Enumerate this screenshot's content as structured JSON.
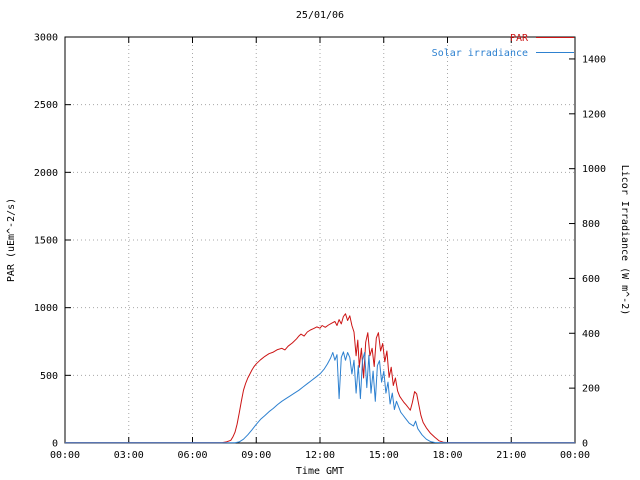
{
  "chart_data": {
    "type": "line",
    "title": "25/01/06",
    "xlabel": "Time GMT",
    "grid": true,
    "legend_position": "top-right-inside",
    "x_range": [
      0,
      24
    ],
    "x_ticks": [
      {
        "v": 0,
        "label": "00:00"
      },
      {
        "v": 3,
        "label": "03:00"
      },
      {
        "v": 6,
        "label": "06:00"
      },
      {
        "v": 9,
        "label": "09:00"
      },
      {
        "v": 12,
        "label": "12:00"
      },
      {
        "v": 15,
        "label": "15:00"
      },
      {
        "v": 18,
        "label": "18:00"
      },
      {
        "v": 21,
        "label": "21:00"
      },
      {
        "v": 24,
        "label": "00:00"
      }
    ],
    "y_left": {
      "label": "PAR (uEm^-2/s)",
      "range": [
        0,
        3000
      ],
      "ticks": [
        {
          "v": 0,
          "label": "0"
        },
        {
          "v": 500,
          "label": "500"
        },
        {
          "v": 1000,
          "label": "1000"
        },
        {
          "v": 1500,
          "label": "1500"
        },
        {
          "v": 2000,
          "label": "2000"
        },
        {
          "v": 2500,
          "label": "2500"
        },
        {
          "v": 3000,
          "label": "3000"
        }
      ]
    },
    "y_right": {
      "label": "Licor Irradiance (W m^-2)",
      "range": [
        0,
        1480
      ],
      "ticks": [
        {
          "v": 0,
          "label": "0"
        },
        {
          "v": 200,
          "label": "200"
        },
        {
          "v": 400,
          "label": "400"
        },
        {
          "v": 600,
          "label": "600"
        },
        {
          "v": 800,
          "label": "800"
        },
        {
          "v": 1000,
          "label": "1000"
        },
        {
          "v": 1200,
          "label": "1200"
        },
        {
          "v": 1400,
          "label": "1400"
        }
      ]
    },
    "colors": {
      "grid": "#a8a8a8",
      "axis": "#000000",
      "par": "#cc1414",
      "solar": "#2e81d0"
    },
    "series": [
      {
        "name": "PAR",
        "axis": "left",
        "color": "#cc1414",
        "points": [
          [
            0,
            3
          ],
          [
            3,
            3
          ],
          [
            6,
            3
          ],
          [
            7.4,
            3
          ],
          [
            7.6,
            8
          ],
          [
            7.8,
            20
          ],
          [
            7.9,
            45
          ],
          [
            8.0,
            80
          ],
          [
            8.1,
            140
          ],
          [
            8.2,
            220
          ],
          [
            8.3,
            310
          ],
          [
            8.4,
            390
          ],
          [
            8.5,
            440
          ],
          [
            8.6,
            480
          ],
          [
            8.7,
            510
          ],
          [
            8.8,
            540
          ],
          [
            8.9,
            565
          ],
          [
            9.0,
            585
          ],
          [
            9.2,
            615
          ],
          [
            9.4,
            640
          ],
          [
            9.6,
            660
          ],
          [
            9.8,
            672
          ],
          [
            10.0,
            690
          ],
          [
            10.2,
            700
          ],
          [
            10.35,
            688
          ],
          [
            10.5,
            715
          ],
          [
            10.7,
            740
          ],
          [
            10.9,
            770
          ],
          [
            11.0,
            790
          ],
          [
            11.1,
            805
          ],
          [
            11.25,
            790
          ],
          [
            11.4,
            820
          ],
          [
            11.55,
            835
          ],
          [
            11.7,
            845
          ],
          [
            11.85,
            858
          ],
          [
            12.0,
            848
          ],
          [
            12.1,
            868
          ],
          [
            12.25,
            855
          ],
          [
            12.4,
            872
          ],
          [
            12.55,
            885
          ],
          [
            12.7,
            898
          ],
          [
            12.8,
            868
          ],
          [
            12.9,
            912
          ],
          [
            13.0,
            880
          ],
          [
            13.1,
            935
          ],
          [
            13.2,
            955
          ],
          [
            13.3,
            905
          ],
          [
            13.4,
            940
          ],
          [
            13.5,
            868
          ],
          [
            13.6,
            820
          ],
          [
            13.7,
            645
          ],
          [
            13.78,
            760
          ],
          [
            13.85,
            560
          ],
          [
            13.95,
            700
          ],
          [
            14.05,
            480
          ],
          [
            14.15,
            745
          ],
          [
            14.25,
            815
          ],
          [
            14.35,
            645
          ],
          [
            14.45,
            700
          ],
          [
            14.55,
            565
          ],
          [
            14.65,
            775
          ],
          [
            14.75,
            815
          ],
          [
            14.85,
            680
          ],
          [
            14.95,
            735
          ],
          [
            15.05,
            600
          ],
          [
            15.15,
            680
          ],
          [
            15.25,
            485
          ],
          [
            15.35,
            560
          ],
          [
            15.45,
            425
          ],
          [
            15.55,
            480
          ],
          [
            15.65,
            385
          ],
          [
            15.75,
            345
          ],
          [
            15.85,
            322
          ],
          [
            15.95,
            300
          ],
          [
            16.05,
            282
          ],
          [
            16.15,
            262
          ],
          [
            16.25,
            242
          ],
          [
            16.35,
            300
          ],
          [
            16.45,
            380
          ],
          [
            16.55,
            362
          ],
          [
            16.65,
            282
          ],
          [
            16.75,
            205
          ],
          [
            16.85,
            152
          ],
          [
            17.0,
            112
          ],
          [
            17.2,
            72
          ],
          [
            17.4,
            42
          ],
          [
            17.6,
            16
          ],
          [
            17.8,
            6
          ],
          [
            18.0,
            3
          ],
          [
            21,
            3
          ],
          [
            24,
            3
          ]
        ]
      },
      {
        "name": "Solar irradiance",
        "axis": "right",
        "color": "#2e81d0",
        "points": [
          [
            0,
            1
          ],
          [
            6,
            1
          ],
          [
            8.0,
            1
          ],
          [
            8.2,
            4
          ],
          [
            8.4,
            14
          ],
          [
            8.6,
            30
          ],
          [
            8.8,
            48
          ],
          [
            9.0,
            68
          ],
          [
            9.2,
            86
          ],
          [
            9.4,
            100
          ],
          [
            9.6,
            114
          ],
          [
            9.8,
            126
          ],
          [
            10.0,
            140
          ],
          [
            10.2,
            152
          ],
          [
            10.4,
            162
          ],
          [
            10.6,
            172
          ],
          [
            10.8,
            182
          ],
          [
            11.0,
            192
          ],
          [
            11.2,
            204
          ],
          [
            11.4,
            216
          ],
          [
            11.6,
            228
          ],
          [
            11.8,
            240
          ],
          [
            12.0,
            252
          ],
          [
            12.2,
            270
          ],
          [
            12.35,
            288
          ],
          [
            12.5,
            310
          ],
          [
            12.6,
            330
          ],
          [
            12.7,
            302
          ],
          [
            12.8,
            322
          ],
          [
            12.9,
            162
          ],
          [
            13.0,
            312
          ],
          [
            13.1,
            332
          ],
          [
            13.2,
            302
          ],
          [
            13.3,
            330
          ],
          [
            13.4,
            312
          ],
          [
            13.5,
            252
          ],
          [
            13.6,
            302
          ],
          [
            13.7,
            182
          ],
          [
            13.8,
            282
          ],
          [
            13.9,
            162
          ],
          [
            14.0,
            302
          ],
          [
            14.1,
            330
          ],
          [
            14.2,
            202
          ],
          [
            14.3,
            320
          ],
          [
            14.4,
            182
          ],
          [
            14.5,
            262
          ],
          [
            14.6,
            152
          ],
          [
            14.7,
            282
          ],
          [
            14.8,
            300
          ],
          [
            14.9,
            222
          ],
          [
            15.0,
            262
          ],
          [
            15.1,
            182
          ],
          [
            15.2,
            222
          ],
          [
            15.3,
            142
          ],
          [
            15.4,
            182
          ],
          [
            15.5,
            122
          ],
          [
            15.6,
            152
          ],
          [
            15.7,
            132
          ],
          [
            15.8,
            112
          ],
          [
            15.9,
            102
          ],
          [
            16.0,
            92
          ],
          [
            16.2,
            72
          ],
          [
            16.4,
            62
          ],
          [
            16.5,
            80
          ],
          [
            16.6,
            52
          ],
          [
            16.8,
            30
          ],
          [
            17.0,
            14
          ],
          [
            17.2,
            5
          ],
          [
            17.4,
            2
          ],
          [
            18.0,
            1
          ],
          [
            21,
            1
          ],
          [
            24,
            1
          ]
        ]
      }
    ]
  }
}
